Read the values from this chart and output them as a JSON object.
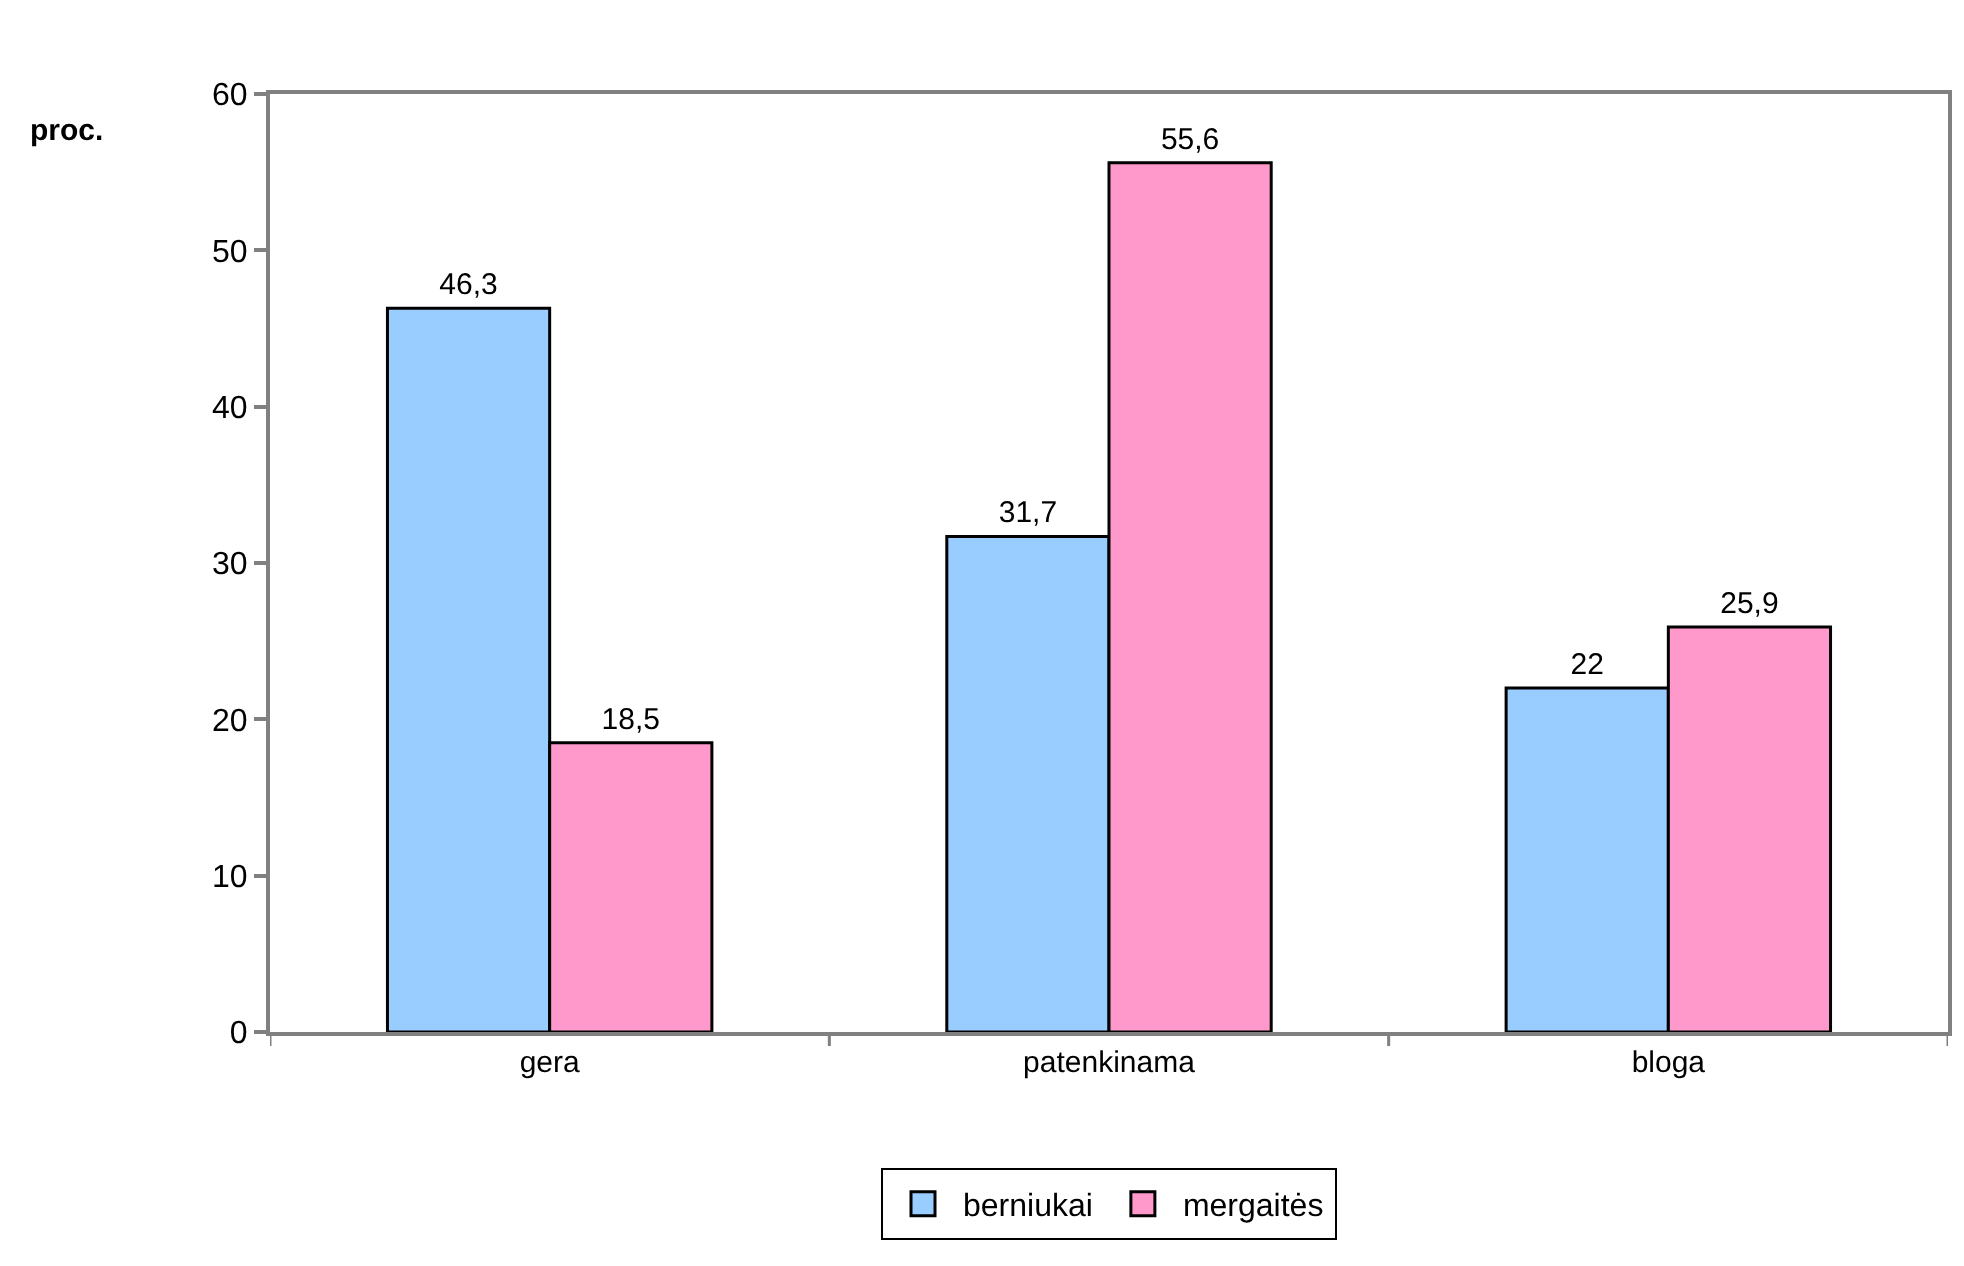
{
  "chart_data": {
    "type": "bar",
    "ylabel": "proc.",
    "categories": [
      "gera",
      "patenkinama",
      "bloga"
    ],
    "series": [
      {
        "name": "berniukai",
        "color": "#99ccff",
        "values": [
          46.3,
          31.7,
          22
        ],
        "value_labels": [
          "46,3",
          "31,7",
          "22"
        ]
      },
      {
        "name": "mergaitės",
        "color": "#ff99cc",
        "values": [
          18.5,
          55.6,
          25.9
        ],
        "value_labels": [
          "18,5",
          "55,6",
          "25,9"
        ]
      }
    ],
    "ylim": [
      0,
      60
    ],
    "yticks": [
      0,
      10,
      20,
      30,
      40,
      50,
      60
    ],
    "grid": false,
    "legend": "bottom"
  }
}
